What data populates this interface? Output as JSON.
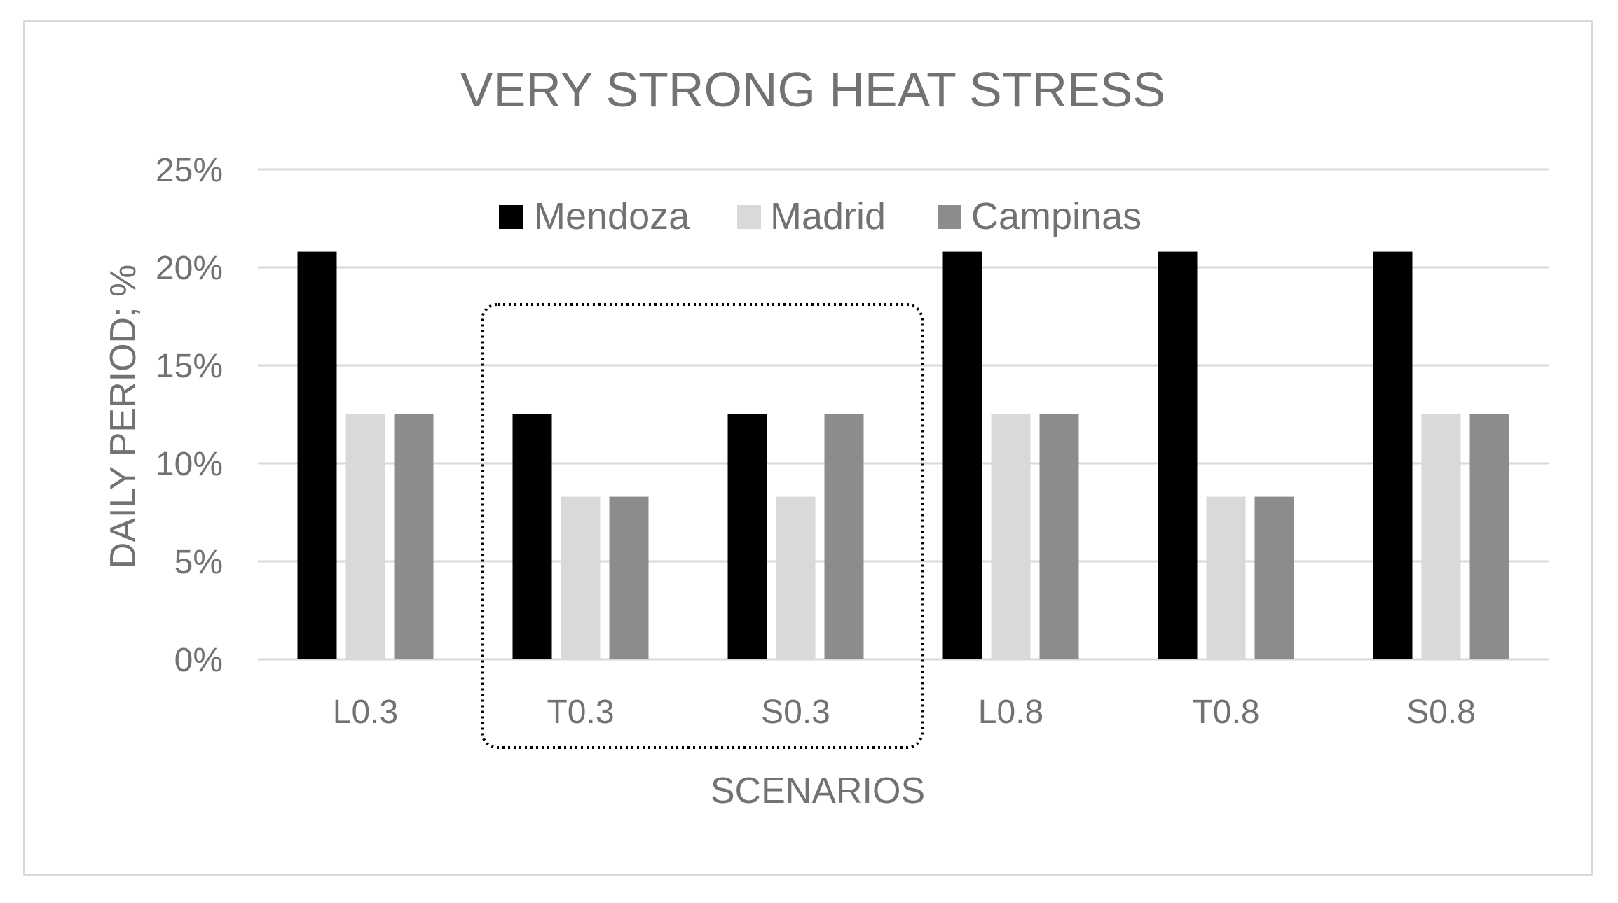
{
  "chart_data": {
    "type": "bar",
    "title": "VERY STRONG HEAT STRESS",
    "xlabel": "SCENARIOS",
    "ylabel": "DAILY PERIOD; %",
    "categories": [
      "L0.3",
      "T0.3",
      "S0.3",
      "L0.8",
      "T0.8",
      "S0.8"
    ],
    "series": [
      {
        "name": "Mendoza",
        "color": "#000000",
        "values": [
          20.8,
          12.5,
          12.5,
          20.8,
          20.8,
          20.8
        ]
      },
      {
        "name": "Madrid",
        "color": "#d9d9d9",
        "values": [
          12.5,
          8.3,
          8.3,
          12.5,
          8.3,
          12.5
        ]
      },
      {
        "name": "Campinas",
        "color": "#8c8c8c",
        "values": [
          12.5,
          8.3,
          12.5,
          12.5,
          8.3,
          12.5
        ]
      }
    ],
    "ylim": [
      0,
      25
    ],
    "yticks": [
      0,
      5,
      10,
      15,
      20,
      25
    ],
    "ytick_labels": [
      "0%",
      "5%",
      "10%",
      "15%",
      "20%",
      "25%"
    ],
    "grid": true,
    "legend_position": "top",
    "highlight": {
      "categories": [
        "T0.3",
        "S0.3"
      ],
      "style": "dotted-rounded-box"
    }
  }
}
